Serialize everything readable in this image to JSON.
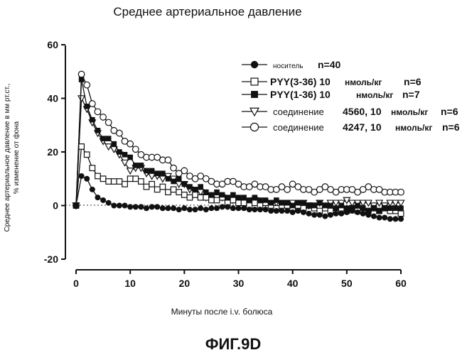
{
  "chart_data": {
    "type": "line",
    "title": "Среднее артериальное давление",
    "xlabel": "Минуты после i.v. болюса",
    "ylabel_line1": "Среднее артериальное давление в мм рт.ст.,",
    "ylabel_line2": "% изменение от фона",
    "figure_label": "ФИГ.9D",
    "xlim": [
      0,
      60
    ],
    "ylim": [
      -20,
      60
    ],
    "x_ticks": [
      "0",
      "10",
      "20",
      "30",
      "40",
      "50",
      "60"
    ],
    "y_ticks": [
      "60",
      "40",
      "20",
      "0",
      "-20"
    ],
    "baseline": 0,
    "x": [
      0,
      1,
      2,
      3,
      4,
      5,
      6,
      7,
      8,
      9,
      10,
      11,
      12,
      13,
      14,
      15,
      16,
      17,
      18,
      19,
      20,
      21,
      22,
      23,
      24,
      25,
      26,
      27,
      28,
      29,
      30,
      31,
      32,
      33,
      34,
      35,
      36,
      37,
      38,
      39,
      40,
      41,
      42,
      43,
      44,
      45,
      46,
      47,
      48,
      49,
      50,
      51,
      52,
      53,
      54,
      55,
      56,
      57,
      58,
      59,
      60
    ],
    "series": [
      {
        "name": "носитель",
        "n_label": "n=40",
        "marker": "filled-circle",
        "values": [
          0,
          11,
          10,
          6,
          3,
          2,
          1,
          0,
          0,
          0,
          -0.5,
          -0.5,
          -0.5,
          -1,
          -0.5,
          -0.5,
          -1,
          -1,
          -1,
          -1.5,
          -1,
          -1.5,
          -1.5,
          -1,
          -1.5,
          -1,
          -1,
          -0.5,
          -0.5,
          -1,
          -1,
          -1,
          -1.5,
          -1.5,
          -1.5,
          -1.5,
          -2,
          -2,
          -2,
          -2,
          -2.5,
          -2,
          -2.5,
          -3,
          -3.5,
          -3.5,
          -4,
          -3.5,
          -3,
          -3,
          -2.5,
          -2,
          -2.5,
          -3,
          -3.5,
          -4,
          -4.5,
          -4.5,
          -5,
          -5,
          -5
        ]
      },
      {
        "name": "PYY(3-36) 10",
        "unit": "нмоль/кг",
        "n_label": "n=6",
        "marker": "open-square",
        "values": [
          0,
          22,
          19,
          14,
          11,
          10,
          9,
          9,
          9,
          8,
          10,
          10,
          9,
          7,
          8,
          6,
          7,
          5,
          6,
          5,
          4,
          3,
          4,
          3,
          3,
          2,
          2,
          3,
          1,
          2,
          1,
          1,
          0,
          1,
          0,
          1,
          0,
          -1,
          0,
          0,
          -1,
          0,
          -1,
          0,
          -1,
          -2,
          -1,
          -2,
          -2,
          -1,
          -2,
          -1,
          -2,
          -2,
          -2,
          -1,
          -2,
          -1,
          -2,
          -2,
          -3
        ]
      },
      {
        "name": "PYY(1-36) 10",
        "unit": "нмоль/кг",
        "n_label": "n=7",
        "marker": "filled-square",
        "values": [
          0,
          47,
          37,
          32,
          28,
          25,
          25,
          23,
          20,
          19,
          18,
          15,
          15,
          13,
          13,
          12,
          12,
          10,
          9,
          10,
          8,
          7,
          6,
          7,
          5,
          4,
          5,
          4,
          3,
          4,
          3,
          3,
          2,
          3,
          2,
          2,
          1,
          2,
          1,
          1,
          0,
          1,
          1,
          0,
          0,
          1,
          0,
          0,
          -1,
          0,
          -1,
          -1,
          0,
          -1,
          -2,
          -1,
          -2,
          -1,
          -1,
          -1,
          -1
        ]
      },
      {
        "name": "соединение",
        "compound": "4560, 10",
        "unit": "нмоль/кг",
        "n_label": "n=6",
        "marker": "open-triangle-down",
        "values": [
          0,
          40,
          36,
          31,
          27,
          24,
          22,
          21,
          19,
          16,
          13,
          14,
          14,
          12,
          11,
          11,
          10,
          11,
          10,
          8,
          8,
          6,
          5,
          5,
          3,
          3,
          3,
          3,
          2,
          2,
          2,
          1,
          1,
          2,
          1,
          1,
          1,
          1,
          1,
          1,
          1,
          1,
          1,
          0,
          0,
          1,
          0,
          1,
          1,
          1,
          2,
          1,
          1,
          1,
          1,
          0,
          1,
          0,
          1,
          1,
          1
        ]
      },
      {
        "name": "соединение",
        "compound": "4247, 10",
        "unit": "нмоль/кг",
        "n_label": "n=6",
        "marker": "open-circle",
        "values": [
          0,
          49,
          45,
          38,
          35,
          33,
          31,
          28,
          27,
          24,
          23,
          21,
          19,
          18,
          18,
          18,
          17,
          17,
          14,
          12,
          13,
          11,
          10,
          11,
          10,
          9,
          8,
          8,
          9,
          9,
          8,
          7,
          7,
          8,
          7,
          7,
          6,
          6,
          7,
          6,
          8,
          7,
          6,
          6,
          5,
          6,
          7,
          6,
          5,
          6,
          6,
          6,
          5,
          6,
          7,
          6,
          6,
          5,
          5,
          5,
          5
        ]
      }
    ]
  }
}
